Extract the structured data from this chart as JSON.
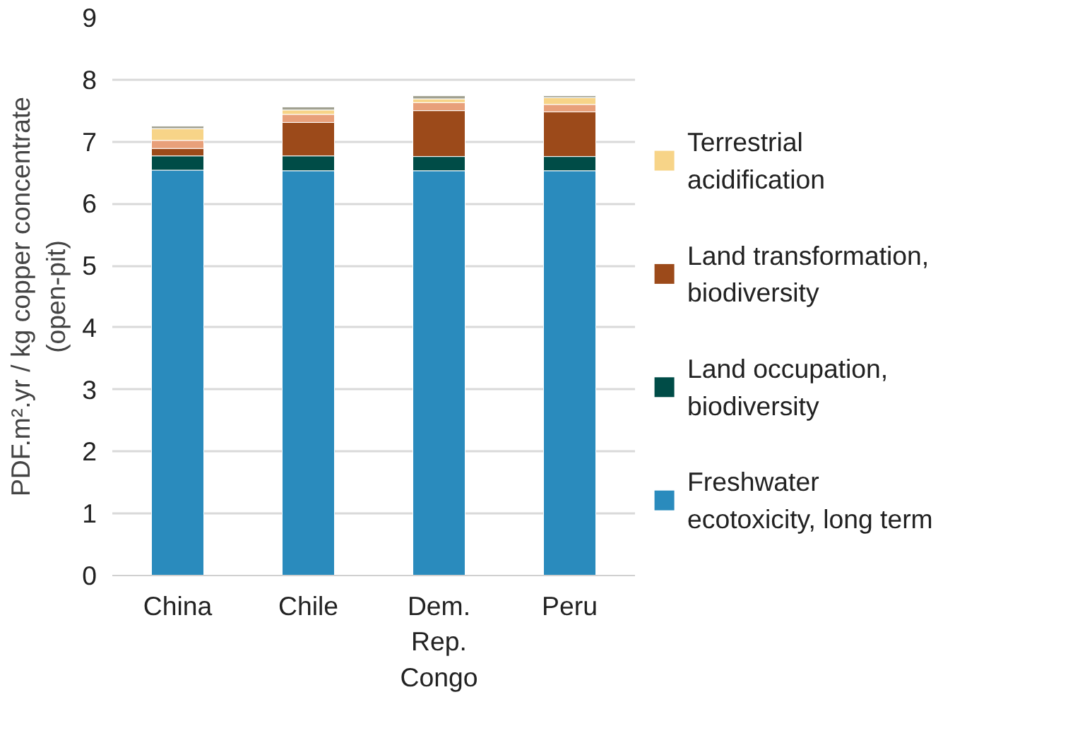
{
  "chart_data": {
    "type": "bar",
    "stacked": true,
    "ylabel": "PDF.m².yr / kg copper concentrate (open-pit)",
    "categories": [
      "China",
      "Chile",
      "Dem. Rep. Congo",
      "Peru"
    ],
    "series": [
      {
        "name": "Freshwater ecotoxicity, long term",
        "color": "#2a8bbd",
        "values": [
          6.54,
          6.53,
          6.53,
          6.53
        ]
      },
      {
        "name": "Land occupation, biodiversity",
        "color": "#004c47",
        "values": [
          0.23,
          0.24,
          0.23,
          0.23
        ]
      },
      {
        "name": "Land transformation, biodiversity",
        "color": "#9c4a1a",
        "values": [
          0.12,
          0.54,
          0.74,
          0.72
        ]
      },
      {
        "color": "#e8a07a",
        "values": [
          0.13,
          0.13,
          0.13,
          0.12
        ]
      },
      {
        "name": "Terrestrial acidification",
        "color": "#f7d488",
        "values": [
          0.19,
          0.07,
          0.06,
          0.11
        ]
      },
      {
        "color": "#a0a090",
        "values": [
          0.04,
          0.05,
          0.05,
          0.03
        ]
      }
    ],
    "ylim": [
      0,
      9
    ],
    "yticks": [
      0,
      1,
      2,
      3,
      4,
      5,
      6,
      7,
      8,
      9
    ],
    "grid": "y",
    "legend": "right"
  }
}
